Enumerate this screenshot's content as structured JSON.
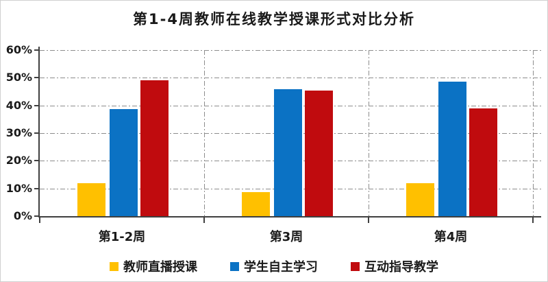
{
  "title": "第1-4周教师在线教学授课形式对比分析",
  "colors": {
    "axis": "#3f3f3f",
    "grid": "#8c8c8c",
    "text": "#1a1a1a",
    "frame_border": "#cfcfcf",
    "background": "#ffffff",
    "series_yellow": "#FFC000",
    "series_blue": "#0B72C4",
    "series_red": "#C00B0E"
  },
  "chart_data": {
    "type": "bar",
    "title": "第1-4周教师在线教学授课形式对比分析",
    "categories": [
      "第1-2周",
      "第3周",
      "第4周"
    ],
    "series": [
      {
        "name": "教师直播授课",
        "color": "#FFC000",
        "values": [
          12,
          8.7,
          12
        ]
      },
      {
        "name": "学生自主学习",
        "color": "#0B72C4",
        "values": [
          38.7,
          46,
          48.7
        ]
      },
      {
        "name": "互动指导教学",
        "color": "#C00B0E",
        "values": [
          49,
          45.3,
          39
        ]
      }
    ],
    "xlabel": "",
    "ylabel": "",
    "ylim": [
      0,
      60
    ],
    "ytick_labels": [
      "0%",
      "10%",
      "20%",
      "30%",
      "40%",
      "50%",
      "60%"
    ],
    "grid": {
      "horizontal": true,
      "vertical": true,
      "style": "dash-dot"
    },
    "legend_position": "bottom"
  }
}
